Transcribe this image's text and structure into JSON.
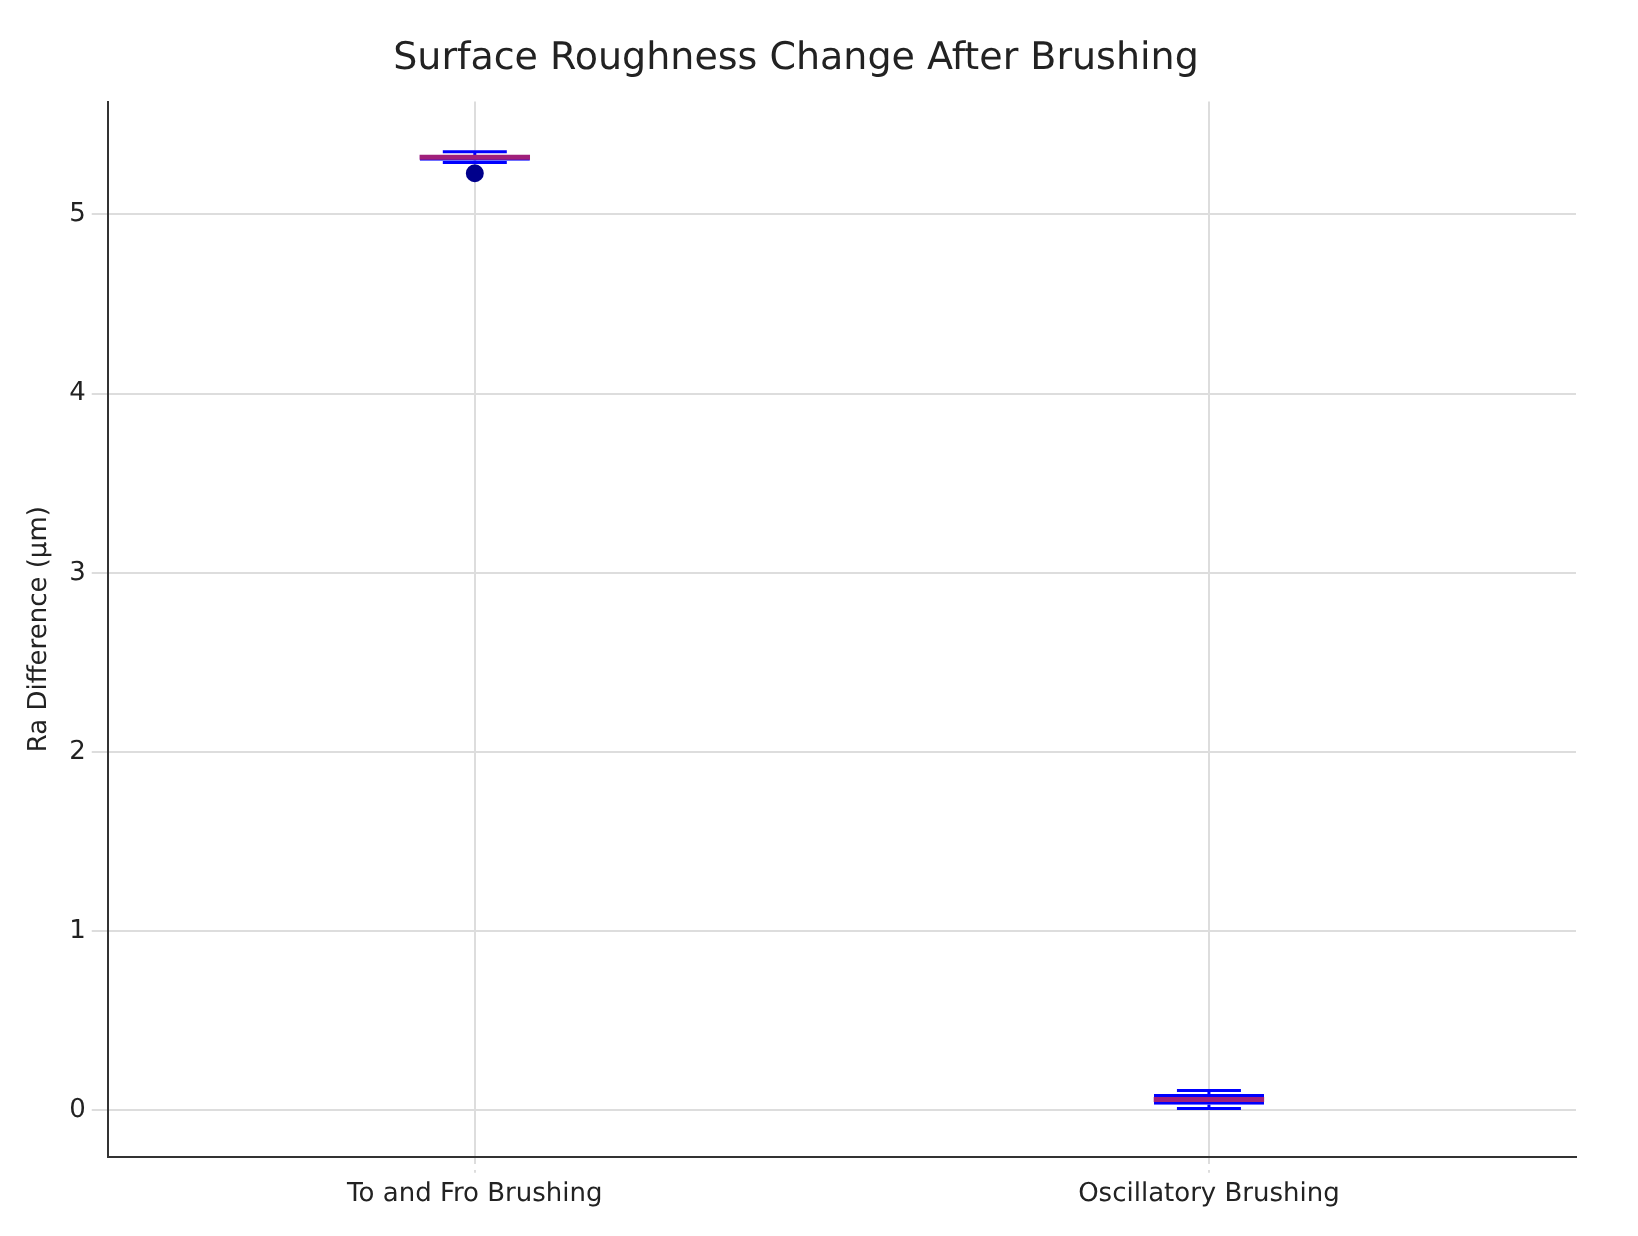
{
  "chart_data": {
    "type": "box",
    "title": "Surface Roughness Change After Brushing",
    "ylabel": "Ra Difference (µm)",
    "categories": [
      "To and Fro Brushing",
      "Oscillatory Brushing"
    ],
    "color": "#0000ff",
    "boxes": [
      {
        "low": 5.29,
        "q1": 5.3,
        "median": 5.32,
        "q3": 5.33,
        "high": 5.35,
        "outliers": [
          5.23
        ]
      },
      {
        "low": 0.01,
        "q1": 0.03,
        "median": 0.06,
        "q3": 0.09,
        "high": 0.11
      }
    ],
    "ylim": [
      -0.26,
      5.63
    ],
    "yticks": [
      0,
      1,
      2,
      3,
      4,
      5
    ],
    "grid": true
  }
}
